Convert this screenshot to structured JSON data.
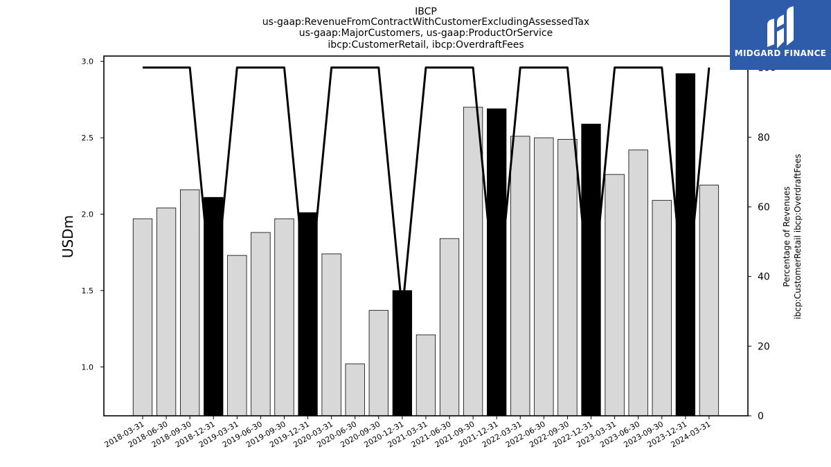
{
  "title_lines": [
    "IBCP",
    "us-gaap:RevenueFromContractWithCustomerExcludingAssessedTax",
    "us-gaap:MajorCustomers, us-gaap:ProductOrService",
    "ibcp:CustomerRetail, ibcp:OverdraftFees"
  ],
  "logo": {
    "text": "MIDGARD FINANCE",
    "background": "#2f5bab"
  },
  "chart_data": {
    "type": "bar",
    "categories": [
      "2018-03-31",
      "2018-06-30",
      "2018-09-30",
      "2018-12-31",
      "2019-03-31",
      "2019-06-30",
      "2019-09-30",
      "2019-12-31",
      "2020-03-31",
      "2020-06-30",
      "2020-09-30",
      "2020-12-31",
      "2021-03-31",
      "2021-06-30",
      "2021-09-30",
      "2021-12-31",
      "2022-03-31",
      "2022-06-30",
      "2022-09-30",
      "2022-12-31",
      "2023-03-31",
      "2023-06-30",
      "2023-09-30",
      "2023-12-31",
      "2024-03-31"
    ],
    "series": [
      {
        "type": "bar",
        "axis": "left",
        "values": [
          1.97,
          2.04,
          2.16,
          2.11,
          1.73,
          1.88,
          1.97,
          2.01,
          1.74,
          1.02,
          1.37,
          1.5,
          1.21,
          1.84,
          2.7,
          2.69,
          2.51,
          2.5,
          2.49,
          2.59,
          2.26,
          2.42,
          2.09,
          2.92,
          2.19
        ],
        "highlight": [
          false,
          false,
          false,
          true,
          false,
          false,
          false,
          true,
          false,
          false,
          false,
          true,
          false,
          false,
          false,
          true,
          false,
          false,
          false,
          true,
          false,
          false,
          false,
          true,
          false
        ]
      },
      {
        "type": "line",
        "axis": "right",
        "values": [
          100,
          100,
          100,
          30,
          100,
          100,
          100,
          30,
          100,
          100,
          100,
          30,
          100,
          100,
          100,
          30,
          100,
          100,
          100,
          30,
          100,
          100,
          100,
          30,
          100
        ]
      }
    ],
    "ylabel": "USDm",
    "y2label_lines": [
      "Percentage of Revenues",
      "ibcp:CustomerRetail ibcp:OverdraftFees"
    ],
    "ylim": [
      0.68,
      3.035
    ],
    "y2lim": [
      0,
      103.3
    ],
    "yticks": [
      "1.0",
      "1.5",
      "2.0",
      "2.5",
      "3.0"
    ],
    "y2ticks": [
      "0",
      "20",
      "40",
      "60",
      "80",
      "100"
    ],
    "colors": {
      "bar": "#d8d8d8",
      "bar_highlight": "#000000",
      "line": "#000000"
    },
    "grid": false,
    "legend": "none"
  }
}
